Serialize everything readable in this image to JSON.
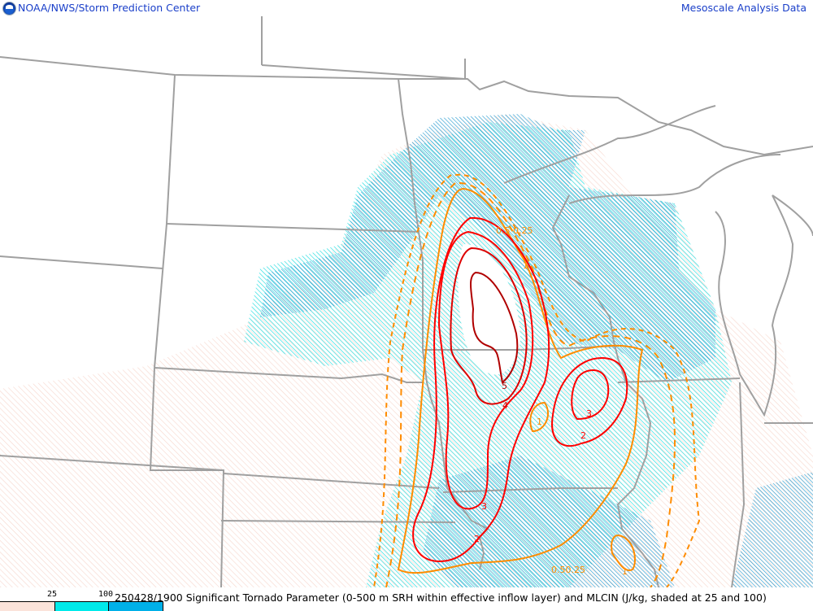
{
  "header": {
    "left_title": "NOAA/NWS/Storm Prediction Center",
    "right_title": "Mesoscale Analysis Data",
    "logo_icon": "noaa-logo-icon"
  },
  "footer": {
    "caption": "250428/1900 Significant Tornado Parameter (0-500 m SRH within effective inflow layer) and MLCIN (J/kg, shaded at 25 and 100)",
    "legend": {
      "ticks": [
        "25",
        "100"
      ],
      "colors": [
        "#fbe3da",
        "#00eaea",
        "#00b0e8"
      ]
    }
  },
  "map": {
    "colors": {
      "state_lines": "#a0a0a0",
      "stp_low": "#ff0000",
      "stp_mid": "#dd0000",
      "stp_high": "#b00000",
      "stp_sub1": "#ff8c00"
    },
    "contour_labels": {
      "top_05_025": "0.5 0.25",
      "top_1": "1",
      "west_5": "5",
      "west_4": "4",
      "west_3": "3",
      "west_2": "2",
      "east_3": "3",
      "east_2": "2",
      "mid_1": "1",
      "south_05_025": "0.50.25",
      "southeast_1": "1"
    }
  }
}
